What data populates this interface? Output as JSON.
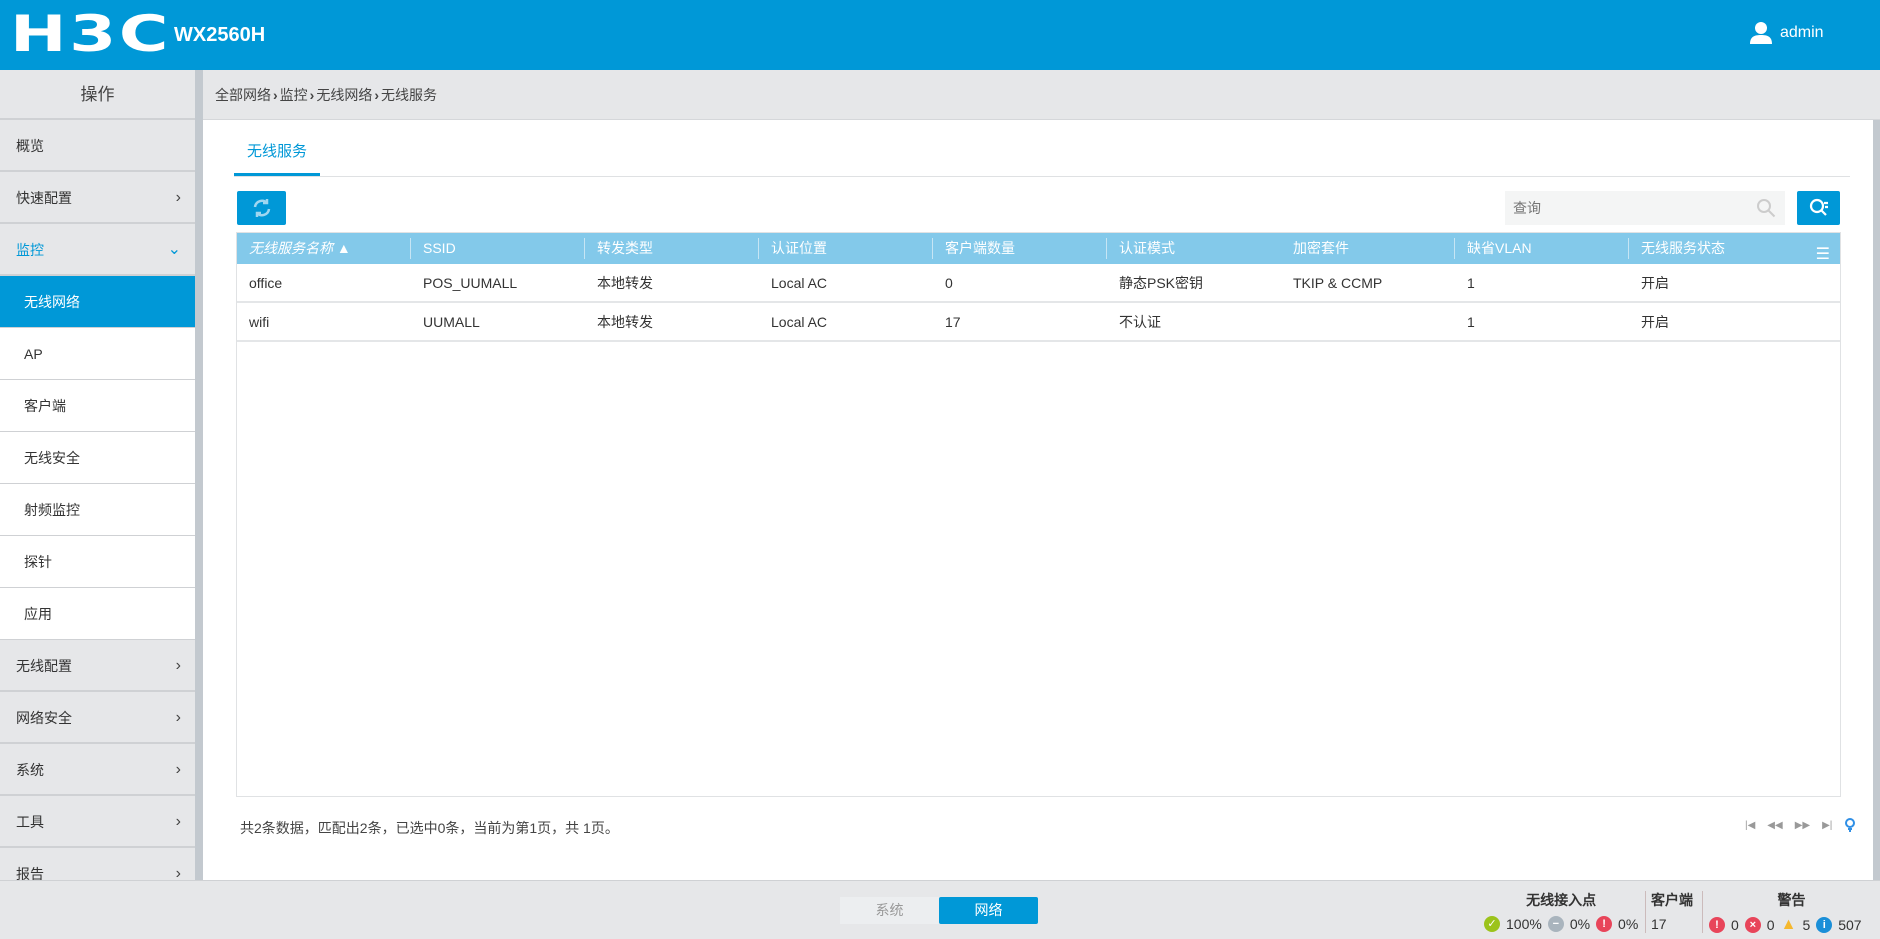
{
  "header": {
    "brand": "H3C",
    "model": "WX2560H",
    "user": "admin"
  },
  "sidebar": {
    "title": "操作",
    "items": [
      {
        "label": "概览",
        "chevron": ""
      },
      {
        "label": "快速配置",
        "chevron": "›"
      },
      {
        "label": "监控",
        "chevron": "⌄"
      },
      {
        "label": "无线网络"
      },
      {
        "label": "AP"
      },
      {
        "label": "客户端"
      },
      {
        "label": "无线安全"
      },
      {
        "label": "射频监控"
      },
      {
        "label": "探针"
      },
      {
        "label": "应用"
      },
      {
        "label": "无线配置",
        "chevron": "›"
      },
      {
        "label": "网络安全",
        "chevron": "›"
      },
      {
        "label": "系统",
        "chevron": "›"
      },
      {
        "label": "工具",
        "chevron": "›"
      },
      {
        "label": "报告",
        "chevron": "›"
      }
    ]
  },
  "breadcrumb": [
    "全部网络",
    "监控",
    "无线网络",
    "无线服务"
  ],
  "tab": "无线服务",
  "search": {
    "placeholder": "查询"
  },
  "table": {
    "columns": [
      "无线服务名称 ▲",
      "SSID",
      "转发类型",
      "认证位置",
      "客户端数量",
      "认证模式",
      "加密套件",
      "缺省VLAN",
      "无线服务状态"
    ],
    "rows": [
      [
        "office",
        "POS_UUMALL",
        "本地转发",
        "Local AC",
        "0",
        "静态PSK密钥",
        "TKIP & CCMP",
        "1",
        "开启"
      ],
      [
        "wifi",
        "UUMALL",
        "本地转发",
        "Local AC",
        "17",
        "不认证",
        "",
        "1",
        "开启"
      ]
    ]
  },
  "pagination": "共2条数据，匹配出2条，已选中0条，当前为第1页，共 1页。",
  "footer": {
    "toggle": [
      "系统",
      "网络"
    ],
    "ap": {
      "title": "无线接入点",
      "online": "100%",
      "offline": "0%",
      "fault": "0%"
    },
    "clients": {
      "title": "客户端",
      "value": "17"
    },
    "alarms": {
      "title": "警告",
      "critical": "0",
      "error": "0",
      "warning": "5",
      "info": "507"
    }
  },
  "colors": {
    "brand": "#0098d7",
    "table_header": "#83c9ea"
  }
}
